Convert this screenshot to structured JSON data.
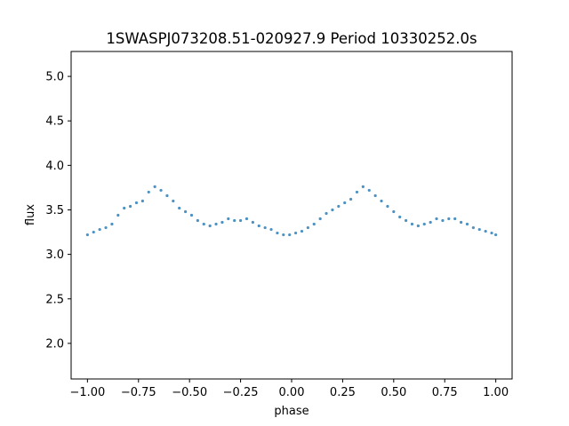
{
  "chart_data": {
    "type": "scatter",
    "title": "1SWASPJ073208.51-020927.9 Period 10330252.0s",
    "xlabel": "phase",
    "ylabel": "flux",
    "xlim": [
      -1.08,
      1.08
    ],
    "ylim": [
      1.6,
      5.28
    ],
    "xticks": [
      -1.0,
      -0.75,
      -0.5,
      -0.25,
      0.0,
      0.25,
      0.5,
      0.75,
      1.0
    ],
    "xtick_labels": [
      "−1.00",
      "−0.75",
      "−0.50",
      "−0.25",
      "0.00",
      "0.25",
      "0.50",
      "0.75",
      "1.00"
    ],
    "yticks": [
      2.0,
      2.5,
      3.0,
      3.5,
      4.0,
      4.5,
      5.0
    ],
    "ytick_labels": [
      "2.0",
      "2.5",
      "3.0",
      "3.5",
      "4.0",
      "4.5",
      "5.0"
    ],
    "grid": false,
    "marker_color": "#1f77b4",
    "series": [
      {
        "phase": [
          -1.0,
          -0.97,
          -0.94,
          -0.91,
          -0.88,
          -0.85,
          -0.82,
          -0.79,
          -0.76,
          -0.73,
          -0.7,
          -0.67,
          -0.64,
          -0.61,
          -0.58,
          -0.55,
          -0.52,
          -0.49,
          -0.46,
          -0.43,
          -0.4,
          -0.37,
          -0.34,
          -0.31,
          -0.28,
          -0.25,
          -0.22,
          -0.19,
          -0.16,
          -0.13,
          -0.1,
          -0.07,
          -0.04,
          -0.01,
          0.02,
          0.05,
          0.08,
          0.11,
          0.14,
          0.17,
          0.2,
          0.23,
          0.26,
          0.29,
          0.32,
          0.35,
          0.38,
          0.41,
          0.44,
          0.47,
          0.5,
          0.53,
          0.56,
          0.59,
          0.62,
          0.65,
          0.68,
          0.71,
          0.74,
          0.77,
          0.8,
          0.83,
          0.86,
          0.89,
          0.92,
          0.95,
          0.98,
          1.0
        ],
        "flux": [
          3.22,
          3.25,
          3.28,
          3.3,
          3.34,
          3.44,
          3.52,
          3.54,
          3.58,
          3.6,
          3.7,
          3.76,
          3.72,
          3.66,
          3.6,
          3.52,
          3.48,
          3.44,
          3.38,
          3.34,
          3.32,
          3.34,
          3.36,
          3.4,
          3.38,
          3.38,
          3.4,
          3.36,
          3.32,
          3.3,
          3.28,
          3.24,
          3.22,
          3.22,
          3.24,
          3.26,
          3.3,
          3.34,
          3.4,
          3.46,
          3.5,
          3.54,
          3.58,
          3.62,
          3.7,
          3.76,
          3.72,
          3.66,
          3.6,
          3.54,
          3.48,
          3.42,
          3.38,
          3.34,
          3.32,
          3.34,
          3.36,
          3.4,
          3.38,
          3.4,
          3.4,
          3.36,
          3.34,
          3.3,
          3.28,
          3.26,
          3.24,
          3.22
        ]
      }
    ]
  }
}
